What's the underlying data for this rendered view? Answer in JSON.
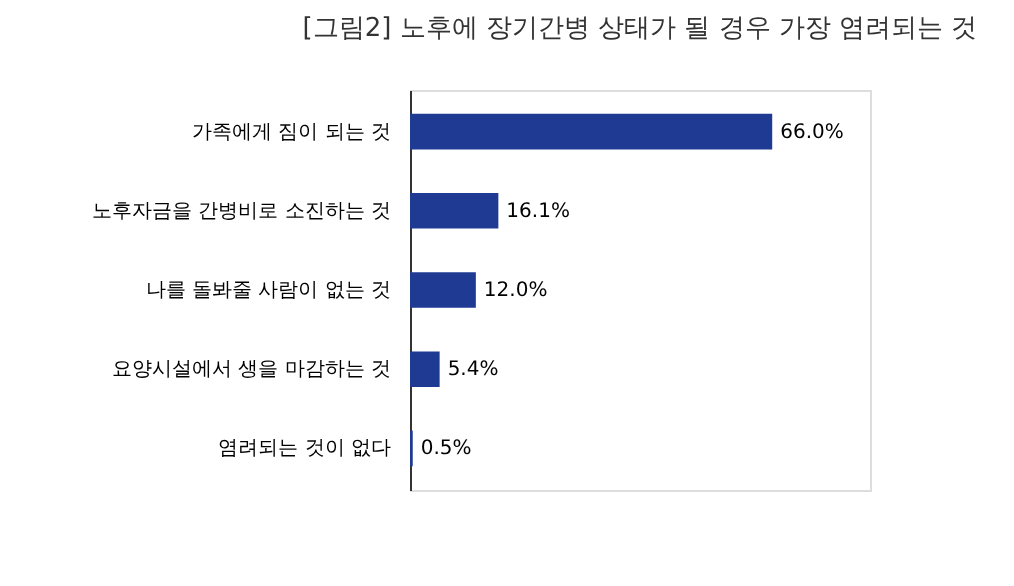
{
  "chart_data": {
    "type": "bar",
    "orientation": "horizontal",
    "title": "[그림2] 노후에 장기간병 상태가 될 경우 가장 염려되는 것",
    "categories": [
      "가족에게 짐이 되는 것",
      "노후자금을 간병비로 소진하는 것",
      "나를 돌봐줄 사람이 없는 것",
      "요양시설에서 생을 마감하는 것",
      "염려되는 것이 없다"
    ],
    "values": [
      66.0,
      16.1,
      12.0,
      5.4,
      0.5
    ],
    "value_labels": [
      "66.0%",
      "16.1%",
      "12.0%",
      "5.4%",
      "0.5%"
    ],
    "color": "#1f3a93",
    "grid": false
  }
}
